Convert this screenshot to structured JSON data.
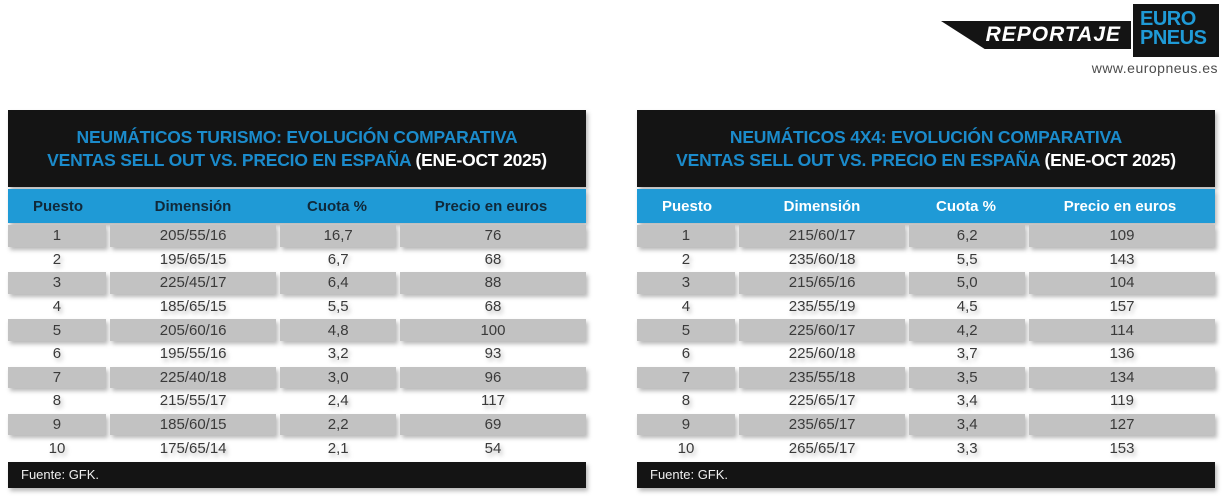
{
  "logo": {
    "reportaje_label": "REPORTAJE",
    "brand_line1": "EURO",
    "brand_line2": "PNEUS",
    "website": "www.europneus.es"
  },
  "colors": {
    "accent_blue": "#1f9ad6",
    "title_blue": "#1b8bcb",
    "band_black": "#141414",
    "row_gray": "#c2c2c2",
    "left_header_text": "#10293a",
    "right_header_text": "#ffffff"
  },
  "chart_data": [
    {
      "type": "table",
      "title_line1": "NEUMÁTICOS TURISMO: EVOLUCIÓN COMPARATIVA",
      "title_line2": "VENTAS SELL OUT VS. PRECIO EN ESPAÑA",
      "title_period": "(ENE-OCT 2025)",
      "columns": [
        "Puesto",
        "Dimensión",
        "Cuota %",
        "Precio en euros"
      ],
      "rows": [
        [
          "1",
          "205/55/16",
          "16,7",
          "76"
        ],
        [
          "2",
          "195/65/15",
          "6,7",
          "68"
        ],
        [
          "3",
          "225/45/17",
          "6,4",
          "88"
        ],
        [
          "4",
          "185/65/15",
          "5,5",
          "68"
        ],
        [
          "5",
          "205/60/16",
          "4,8",
          "100"
        ],
        [
          "6",
          "195/55/16",
          "3,2",
          "93"
        ],
        [
          "7",
          "225/40/18",
          "3,0",
          "96"
        ],
        [
          "8",
          "215/55/17",
          "2,4",
          "117"
        ],
        [
          "9",
          "185/60/15",
          "2,2",
          "69"
        ],
        [
          "10",
          "175/65/14",
          "2,1",
          "54"
        ]
      ],
      "source": "Fuente: GFK."
    },
    {
      "type": "table",
      "title_line1": "NEUMÁTICOS 4X4: EVOLUCIÓN COMPARATIVA",
      "title_line2": "VENTAS SELL OUT VS. PRECIO EN ESPAÑA",
      "title_period": "(ENE-OCT 2025)",
      "columns": [
        "Puesto",
        "Dimensión",
        "Cuota %",
        "Precio en euros"
      ],
      "rows": [
        [
          "1",
          "215/60/17",
          "6,2",
          "109"
        ],
        [
          "2",
          "235/60/18",
          "5,5",
          "143"
        ],
        [
          "3",
          "215/65/16",
          "5,0",
          "104"
        ],
        [
          "4",
          "235/55/19",
          "4,5",
          "157"
        ],
        [
          "5",
          "225/60/17",
          "4,2",
          "114"
        ],
        [
          "6",
          "225/60/18",
          "3,7",
          "136"
        ],
        [
          "7",
          "235/55/18",
          "3,5",
          "134"
        ],
        [
          "8",
          "225/65/17",
          "3,4",
          "119"
        ],
        [
          "9",
          "235/65/17",
          "3,4",
          "127"
        ],
        [
          "10",
          "265/65/17",
          "3,3",
          "153"
        ]
      ],
      "source": "Fuente: GFK."
    }
  ]
}
